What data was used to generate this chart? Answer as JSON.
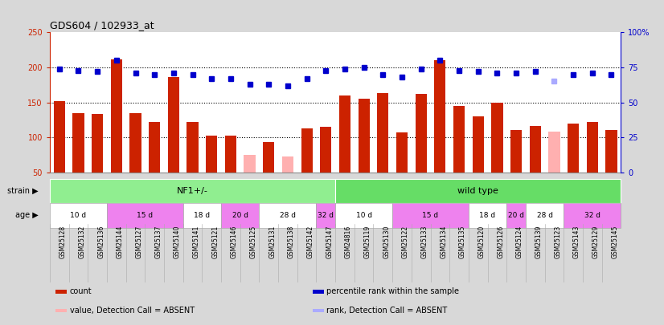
{
  "title": "GDS604 / 102933_at",
  "samples": [
    "GSM25128",
    "GSM25132",
    "GSM25136",
    "GSM25144",
    "GSM25127",
    "GSM25137",
    "GSM25140",
    "GSM25141",
    "GSM25121",
    "GSM25146",
    "GSM25125",
    "GSM25131",
    "GSM25138",
    "GSM25142",
    "GSM25147",
    "GSM24816",
    "GSM25119",
    "GSM25130",
    "GSM25122",
    "GSM25133",
    "GSM25134",
    "GSM25135",
    "GSM25120",
    "GSM25126",
    "GSM25124",
    "GSM25139",
    "GSM25123",
    "GSM25143",
    "GSM25129",
    "GSM25145"
  ],
  "counts": [
    152,
    135,
    133,
    212,
    135,
    122,
    186,
    122,
    103,
    103,
    75,
    93,
    72,
    113,
    115,
    160,
    155,
    163,
    107,
    162,
    210,
    145,
    130,
    150,
    110,
    116,
    108,
    120,
    122,
    110
  ],
  "counts_absent": [
    false,
    false,
    false,
    false,
    false,
    false,
    false,
    false,
    false,
    false,
    true,
    false,
    true,
    false,
    false,
    false,
    false,
    false,
    false,
    false,
    false,
    false,
    false,
    false,
    false,
    false,
    true,
    false,
    false,
    false
  ],
  "percentile": [
    74,
    73,
    72,
    80,
    71,
    70,
    71,
    70,
    67,
    67,
    63,
    63,
    62,
    67,
    73,
    74,
    75,
    70,
    68,
    74,
    80,
    73,
    72,
    71,
    71,
    72,
    65,
    70,
    71,
    70
  ],
  "percentile_absent": [
    false,
    false,
    false,
    false,
    false,
    false,
    false,
    false,
    false,
    false,
    false,
    false,
    false,
    false,
    false,
    false,
    false,
    false,
    false,
    false,
    false,
    false,
    false,
    false,
    false,
    false,
    true,
    false,
    false,
    false
  ],
  "strain_groups": [
    {
      "label": "NF1+/-",
      "start": 0,
      "end": 14,
      "color": "#90ee90"
    },
    {
      "label": "wild type",
      "start": 15,
      "end": 29,
      "color": "#66dd66"
    }
  ],
  "age_groups": [
    {
      "label": "10 d",
      "start": 0,
      "end": 2,
      "color": "#ffffff"
    },
    {
      "label": "15 d",
      "start": 3,
      "end": 6,
      "color": "#ee82ee"
    },
    {
      "label": "18 d",
      "start": 7,
      "end": 8,
      "color": "#ffffff"
    },
    {
      "label": "20 d",
      "start": 9,
      "end": 10,
      "color": "#ee82ee"
    },
    {
      "label": "28 d",
      "start": 11,
      "end": 13,
      "color": "#ffffff"
    },
    {
      "label": "32 d",
      "start": 14,
      "end": 14,
      "color": "#ee82ee"
    },
    {
      "label": "10 d",
      "start": 15,
      "end": 17,
      "color": "#ffffff"
    },
    {
      "label": "15 d",
      "start": 18,
      "end": 21,
      "color": "#ee82ee"
    },
    {
      "label": "18 d",
      "start": 22,
      "end": 23,
      "color": "#ffffff"
    },
    {
      "label": "20 d",
      "start": 24,
      "end": 24,
      "color": "#ee82ee"
    },
    {
      "label": "28 d",
      "start": 25,
      "end": 26,
      "color": "#ffffff"
    },
    {
      "label": "32 d",
      "start": 27,
      "end": 29,
      "color": "#ee82ee"
    }
  ],
  "ylim_left": [
    50,
    250
  ],
  "ylim_right": [
    0,
    100
  ],
  "bar_color_normal": "#cc2200",
  "bar_color_absent": "#ffb0b0",
  "dot_color_normal": "#0000cc",
  "dot_color_absent": "#aaaaff",
  "legend_items": [
    {
      "label": "count",
      "color": "#cc2200"
    },
    {
      "label": "percentile rank within the sample",
      "color": "#0000cc"
    },
    {
      "label": "value, Detection Call = ABSENT",
      "color": "#ffb0b0"
    },
    {
      "label": "rank, Detection Call = ABSENT",
      "color": "#aaaaff"
    }
  ],
  "background_color": "#d8d8d8",
  "plot_bg_color": "#ffffff",
  "yticks_left": [
    50,
    100,
    150,
    200,
    250
  ],
  "yticks_right": [
    0,
    25,
    50,
    75,
    100
  ],
  "ytick_labels_right": [
    "0",
    "25",
    "50",
    "75",
    "100%"
  ],
  "gridlines": [
    100,
    150,
    200
  ]
}
